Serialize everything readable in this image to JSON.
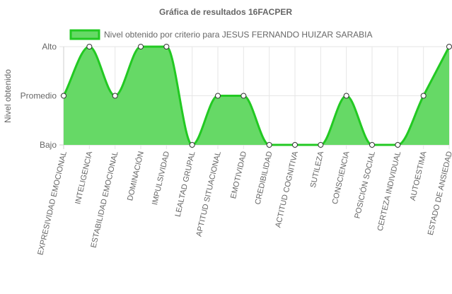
{
  "chart_data": {
    "type": "area",
    "title": "Gráfica de resultados 16FACPER",
    "ylabel": "Nivel obtenido",
    "xlabel": "",
    "y_levels": [
      "Bajo",
      "Promedio",
      "Alto"
    ],
    "ylim": [
      0,
      2
    ],
    "categories": [
      "EXPRESIVIDAD EMOCIONAL",
      "INTELIGENCIA",
      "ESTABILIDAD EMOCIONAL",
      "DOMINACIÓN",
      "IMPULSIVIDAD",
      "LEALTAD GRUPAL",
      "APTITUD SITUACIONAL",
      "EMOTIVIDAD",
      "CREDIBILIDAD",
      "ACTITUD COGNITIVA",
      "SUTILEZA",
      "CONSCIENCIA",
      "POSICIÓN SOCIAL",
      "CERTEZA INDIVIDUAL",
      "AUTOESTIMA",
      "ESTADO DE ANSIEDAD"
    ],
    "series": [
      {
        "name": "Nivel obtenido por criterio para JESUS FERNANDO HUIZAR SARABIA",
        "values": [
          1,
          2,
          1,
          2,
          2,
          0,
          1,
          1,
          0,
          0,
          0,
          1,
          0,
          0,
          1,
          2
        ]
      }
    ],
    "legend_position": "top",
    "grid": true,
    "colors": {
      "fill": "#66d966",
      "stroke": "#22c922",
      "grid": "#e6e6e6",
      "axis_text": "#666666",
      "title": "#666666"
    }
  }
}
